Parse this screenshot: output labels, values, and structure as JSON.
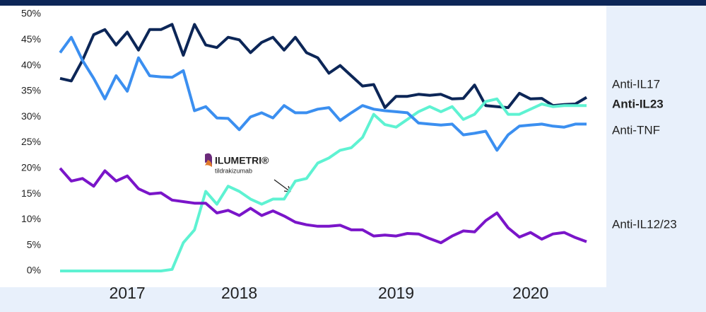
{
  "chart_data": {
    "type": "line",
    "categories": [
      null,
      null,
      null,
      null,
      null,
      null,
      "2017",
      null,
      null,
      null,
      null,
      null,
      null,
      null,
      null,
      null,
      "2018",
      null,
      null,
      null,
      null,
      null,
      null,
      null,
      null,
      null,
      null,
      null,
      null,
      null,
      "2019",
      null,
      null,
      null,
      null,
      null,
      null,
      null,
      null,
      null,
      null,
      null,
      "2020",
      null,
      null,
      null,
      null,
      null
    ],
    "series": [
      {
        "name": "Anti-IL17",
        "color": "#0c2657",
        "values": [
          37.5,
          37,
          41,
          46,
          47,
          44,
          46.5,
          43,
          47,
          47,
          48,
          42,
          48,
          44,
          43.5,
          45.5,
          45,
          42.5,
          44.5,
          45.5,
          43,
          45.5,
          42.5,
          41.5,
          38.5,
          40,
          38,
          36,
          36.3,
          31.8,
          34,
          34,
          34.4,
          34.2,
          34.4,
          33.5,
          33.6,
          36.2,
          32.2,
          32,
          31.8,
          34.6,
          33.5,
          33.6,
          32.2,
          32.4,
          32.5,
          33.8
        ]
      },
      {
        "name": "Anti-IL23",
        "color": "#5ef2d2",
        "values": [
          0,
          0,
          0,
          0,
          0,
          0,
          0,
          0,
          0,
          0,
          0.3,
          5.5,
          8,
          15.5,
          13,
          16.5,
          15.5,
          14,
          13,
          14,
          14,
          17.5,
          18,
          21,
          22,
          23.5,
          24,
          26,
          30.5,
          28.5,
          28,
          29.5,
          31,
          32,
          31,
          32,
          29.5,
          30.5,
          33,
          33.5,
          30.5,
          30.5,
          31.5,
          32.5,
          32,
          32.2,
          32.2,
          32.2
        ]
      },
      {
        "name": "Anti-TNF",
        "color": "#3b8ff0",
        "values": [
          42.5,
          45.5,
          41,
          37.5,
          33.5,
          38,
          35,
          41.5,
          38,
          37.8,
          37.7,
          39,
          31.2,
          32,
          29.8,
          29.7,
          27.5,
          30,
          30.8,
          29.8,
          32.2,
          30.8,
          30.8,
          31.5,
          31.8,
          29.3,
          30.8,
          32.2,
          31.5,
          31.2,
          31,
          30.8,
          28.8,
          28.6,
          28.4,
          28.6,
          26.5,
          26.8,
          27.2,
          23.5,
          26.5,
          28.2,
          28.4,
          28.6,
          28.2,
          28,
          28.6,
          28.6
        ]
      },
      {
        "name": "Anti-IL12/23",
        "color": "#7a15c9",
        "values": [
          20,
          17.5,
          18,
          16.5,
          19.5,
          17.5,
          18.5,
          16,
          15,
          15.2,
          13.8,
          13.5,
          13.2,
          13.2,
          11.3,
          11.8,
          10.8,
          12.2,
          10.8,
          11.7,
          10.7,
          9.5,
          9,
          8.7,
          8.7,
          8.9,
          8,
          8,
          6.8,
          7,
          6.8,
          7.3,
          7.2,
          6.3,
          5.5,
          6.8,
          7.8,
          7.6,
          9.8,
          11.3,
          8.4,
          6.6,
          7.5,
          6.2,
          7.2,
          7.5,
          6.5,
          5.7
        ]
      }
    ],
    "ylim": [
      0,
      50
    ],
    "yticks": [
      {
        "value": 0,
        "label": "0%"
      },
      {
        "value": 5,
        "label": "5%"
      },
      {
        "value": 10,
        "label": "10%"
      },
      {
        "value": 15,
        "label": "15%"
      },
      {
        "value": 20,
        "label": "20%"
      },
      {
        "value": 25,
        "label": "25%"
      },
      {
        "value": 30,
        "label": "30%"
      },
      {
        "value": 35,
        "label": "35%"
      },
      {
        "value": 40,
        "label": "40%"
      },
      {
        "value": 45,
        "label": "45%"
      },
      {
        "value": 50,
        "label": "50%"
      }
    ],
    "annotations": {
      "brand": "ILUMETRI®",
      "generic": "tildrakizumab"
    }
  }
}
